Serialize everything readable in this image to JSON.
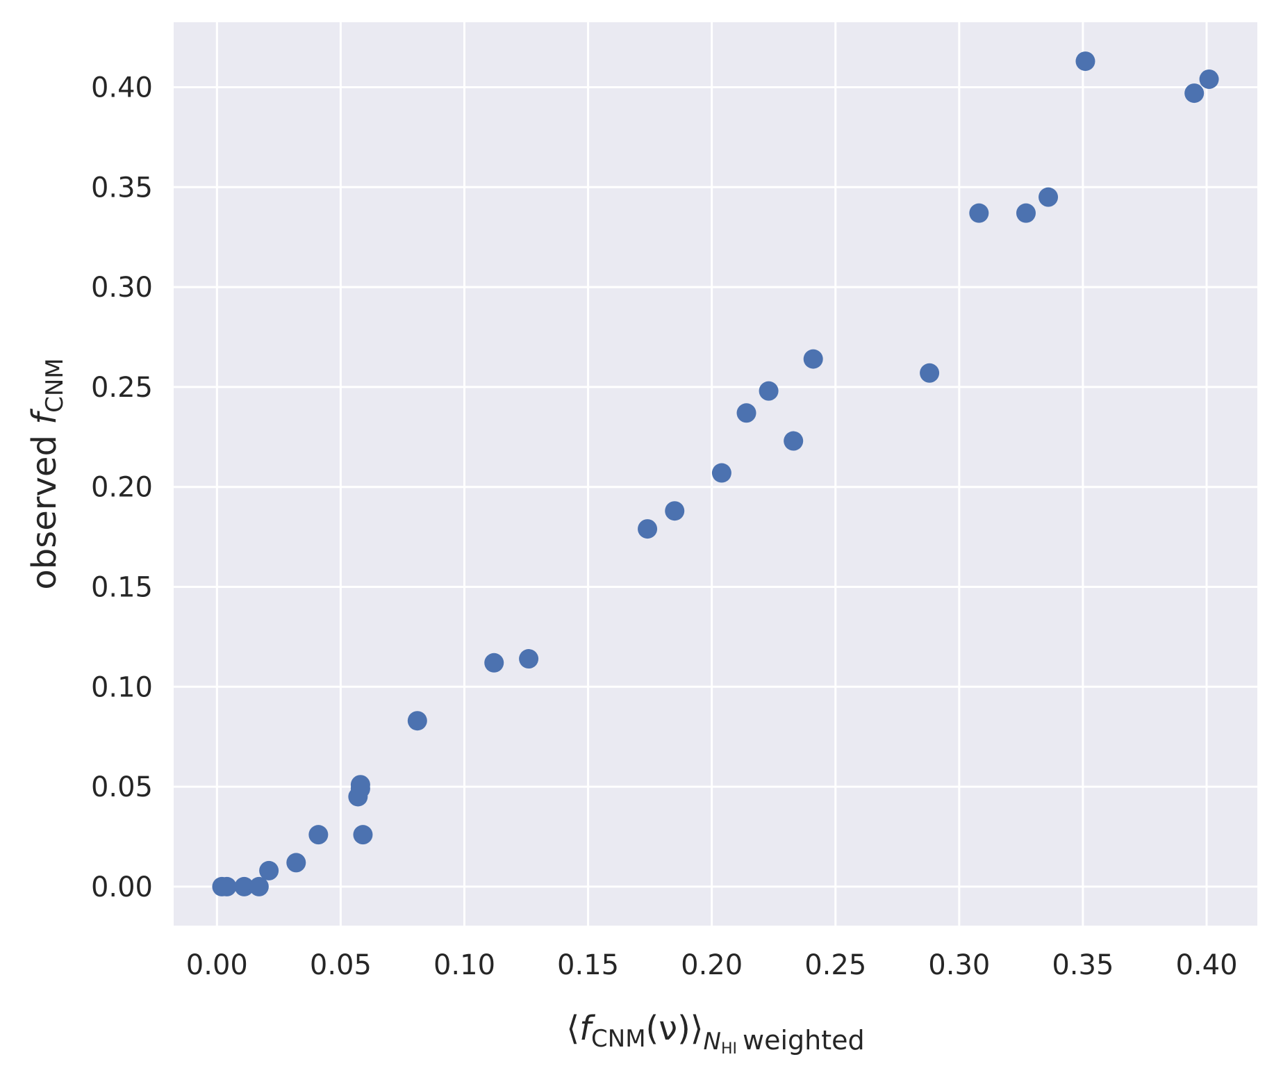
{
  "chart_data": {
    "type": "scatter",
    "title": "",
    "xlabel": {
      "prefix": "⟨",
      "base": "f",
      "sub": "CNM",
      "arg": "(ν)",
      "suffix": "⟩",
      "weight_sub": "N",
      "weight_subsub": "HI",
      "weight_text": "weighted"
    },
    "ylabel": {
      "text": "observed ",
      "base": "f",
      "sub": "CNM"
    },
    "xlim": [
      -0.0175,
      0.4205
    ],
    "ylim": [
      -0.0195,
      0.4325
    ],
    "xticks": [
      0.0,
      0.05,
      0.1,
      0.15,
      0.2,
      0.25,
      0.3,
      0.35,
      0.4
    ],
    "xtick_labels": [
      "0.00",
      "0.05",
      "0.10",
      "0.15",
      "0.20",
      "0.25",
      "0.30",
      "0.35",
      "0.40"
    ],
    "yticks": [
      0.0,
      0.05,
      0.1,
      0.15,
      0.2,
      0.25,
      0.3,
      0.35,
      0.4
    ],
    "ytick_labels": [
      "0.00",
      "0.05",
      "0.10",
      "0.15",
      "0.20",
      "0.25",
      "0.30",
      "0.35",
      "0.40"
    ],
    "grid": true,
    "colors": {
      "background": "#eaeaf2",
      "grid": "#ffffff",
      "marker": "#4c72b0",
      "text": "#262626"
    },
    "series": [
      {
        "points": [
          [
            0.002,
            0.0
          ],
          [
            0.004,
            0.0
          ],
          [
            0.011,
            0.0
          ],
          [
            0.017,
            0.0
          ],
          [
            0.021,
            0.008
          ],
          [
            0.032,
            0.012
          ],
          [
            0.041,
            0.026
          ],
          [
            0.057,
            0.045
          ],
          [
            0.058,
            0.049
          ],
          [
            0.058,
            0.051
          ],
          [
            0.059,
            0.026
          ],
          [
            0.081,
            0.083
          ],
          [
            0.112,
            0.112
          ],
          [
            0.126,
            0.114
          ],
          [
            0.174,
            0.179
          ],
          [
            0.185,
            0.188
          ],
          [
            0.204,
            0.207
          ],
          [
            0.214,
            0.237
          ],
          [
            0.223,
            0.248
          ],
          [
            0.233,
            0.223
          ],
          [
            0.241,
            0.264
          ],
          [
            0.288,
            0.257
          ],
          [
            0.308,
            0.337
          ],
          [
            0.327,
            0.337
          ],
          [
            0.336,
            0.345
          ],
          [
            0.351,
            0.413
          ],
          [
            0.395,
            0.397
          ],
          [
            0.401,
            0.404
          ]
        ]
      }
    ]
  }
}
